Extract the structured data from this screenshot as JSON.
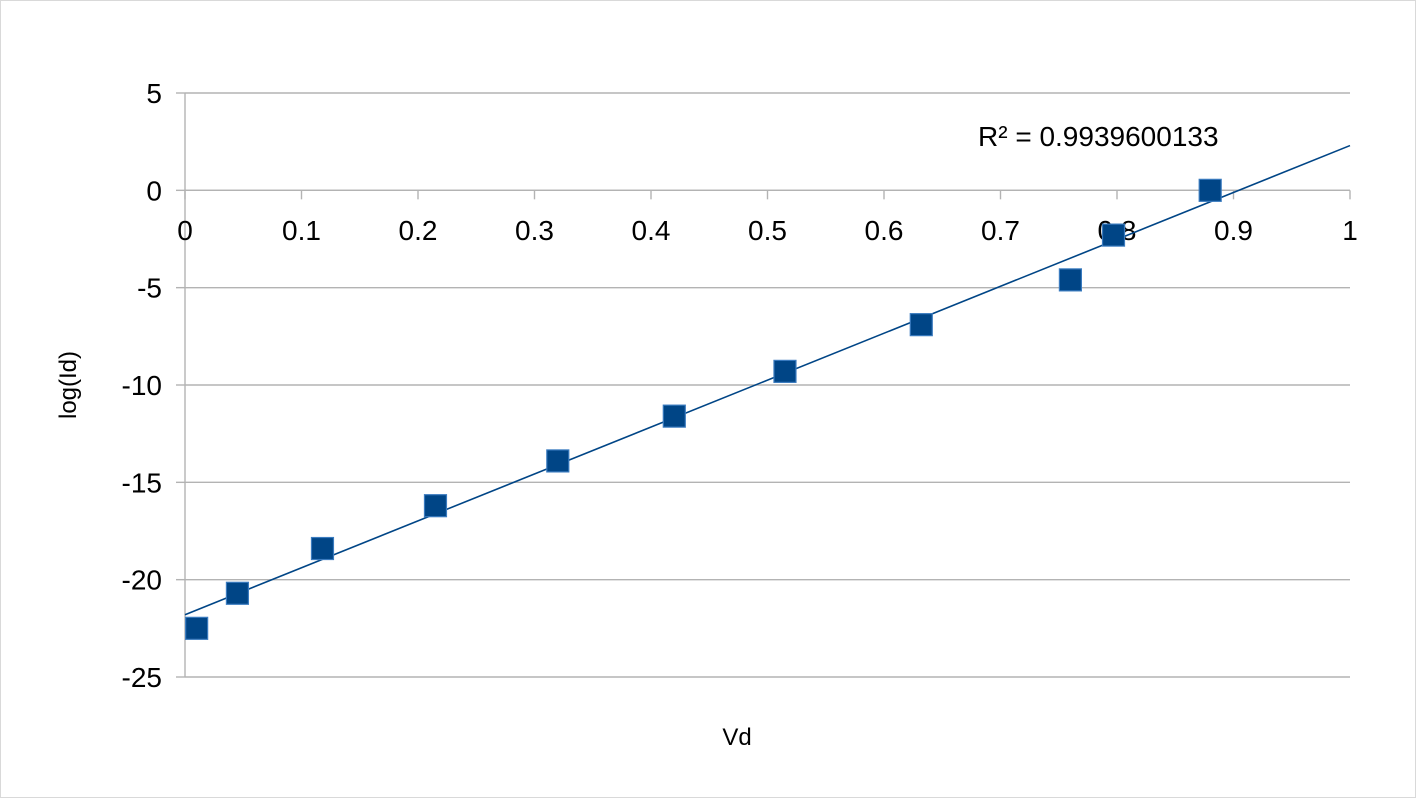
{
  "chart_data": {
    "type": "scatter",
    "title": "",
    "xlabel": "Vd",
    "ylabel": "log(Id)",
    "xlim": [
      0,
      1
    ],
    "ylim": [
      -25,
      5
    ],
    "x_ticks": [
      "0",
      "0.1",
      "0.2",
      "0.3",
      "0.4",
      "0.5",
      "0.6",
      "0.7",
      "0.8",
      "0.9",
      "1"
    ],
    "y_ticks": [
      "5",
      "0",
      "-5",
      "-10",
      "-15",
      "-20",
      "-25"
    ],
    "grid": true,
    "x_axis_position": "y=0",
    "series": [
      {
        "marker": "square",
        "x": [
          0.01,
          0.045,
          0.118,
          0.215,
          0.32,
          0.42,
          0.515,
          0.632,
          0.76,
          0.797,
          0.88
        ],
        "y": [
          -22.5,
          -20.7,
          -18.4,
          -16.2,
          -13.9,
          -11.6,
          -9.3,
          -6.9,
          -4.6,
          -2.3,
          0.0
        ],
        "color": "#004586"
      }
    ],
    "trendline": {
      "type": "linear",
      "x": [
        0,
        1
      ],
      "y": [
        -21.8,
        2.3
      ],
      "color": "#004586"
    },
    "annotation": "R² = 0.9939600133"
  }
}
